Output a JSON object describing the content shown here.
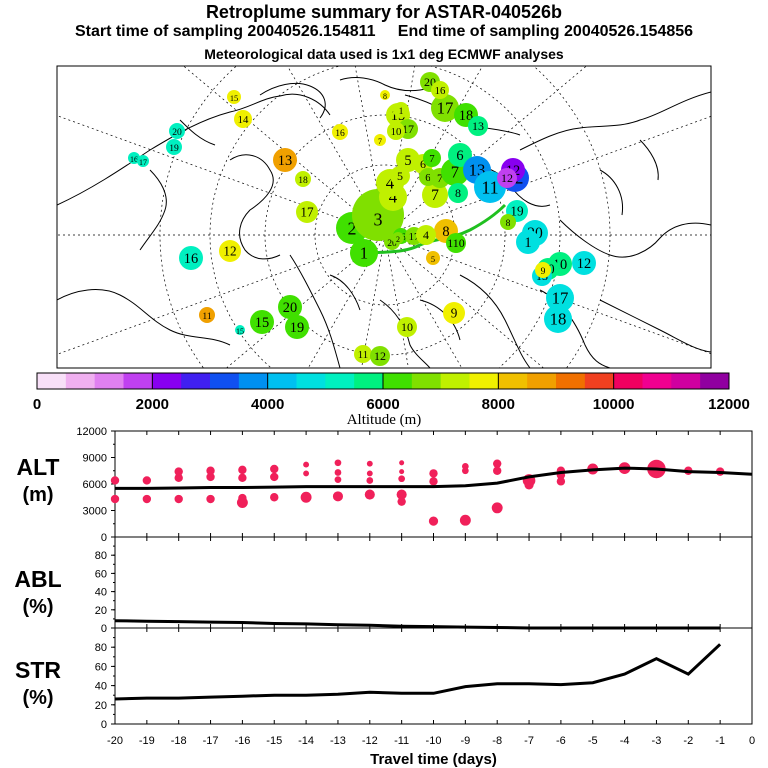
{
  "header": {
    "title": "Retroplume summary for ASTAR-040526b",
    "subtitle": "Start time of sampling 20040526.154811     End time of sampling 20040526.154856",
    "subtitle2": "Meteorological data used is 1x1 deg ECMWF analyses"
  },
  "colorbar": {
    "label": "Altitude (m)",
    "colors": [
      "#f8e0f8",
      "#f0b0f0",
      "#e080f0",
      "#c040f0",
      "#8800f0",
      "#4020f0",
      "#1050f0",
      "#0090f0",
      "#00c0f0",
      "#00e0e0",
      "#00f0c0",
      "#00f080",
      "#40e000",
      "#80e000",
      "#c0f000",
      "#f0f000",
      "#f0c000",
      "#f0a000",
      "#f07000",
      "#f04020",
      "#f00060",
      "#f00090",
      "#d000a0",
      "#9000a0"
    ],
    "ticks": [
      "0",
      "2000",
      "4000",
      "6000",
      "8000",
      "10000",
      "12000"
    ]
  },
  "map": {
    "markers": [
      {
        "label": "1",
        "alt": 6200
      },
      {
        "label": "2",
        "alt": 6400
      },
      {
        "label": "3",
        "alt": 6600
      },
      {
        "label": "4",
        "alt": 7000
      },
      {
        "label": "5",
        "alt": 7400
      },
      {
        "label": "6",
        "alt": 5600
      },
      {
        "label": "7",
        "alt": 5800
      },
      {
        "label": "8",
        "alt": 4800
      },
      {
        "label": "9",
        "alt": 7600
      },
      {
        "label": "10",
        "alt": 6800
      },
      {
        "label": "11",
        "alt": 5000
      },
      {
        "label": "12",
        "alt": 4600
      },
      {
        "label": "13",
        "alt": 8600
      },
      {
        "label": "14",
        "alt": 8400
      },
      {
        "label": "15",
        "alt": 7800
      },
      {
        "label": "16",
        "alt": 4800
      },
      {
        "label": "17",
        "alt": 7700
      },
      {
        "label": "18",
        "alt": 5100
      },
      {
        "label": "19",
        "alt": 5500
      },
      {
        "label": "20",
        "alt": 6900
      }
    ]
  },
  "chart_data": [
    {
      "type": "scatter",
      "panel": "ALT",
      "label_line1": "ALT",
      "label_line2": "(m)",
      "ylim": [
        0,
        12000
      ],
      "yticks": [
        "0",
        "3000",
        "6000",
        "9000",
        "12000"
      ],
      "xlim": [
        -20,
        0
      ],
      "mean_line": {
        "x": [
          -20,
          -19,
          -18,
          -17,
          -16,
          -15,
          -14,
          -13,
          -12,
          -11,
          -10,
          -9,
          -8,
          -7,
          -6,
          -5,
          -4,
          -3,
          -2,
          -1,
          0
        ],
        "y": [
          5500,
          5500,
          5550,
          5600,
          5600,
          5650,
          5700,
          5700,
          5700,
          5700,
          5700,
          5800,
          6100,
          6800,
          7300,
          7600,
          7800,
          7700,
          7400,
          7300,
          7100
        ]
      },
      "points": [
        {
          "x": -20,
          "y": 6400,
          "s": 1
        },
        {
          "x": -20,
          "y": 4300,
          "s": 1
        },
        {
          "x": -19,
          "y": 6400,
          "s": 1
        },
        {
          "x": -19,
          "y": 4300,
          "s": 1
        },
        {
          "x": -18,
          "y": 7400,
          "s": 1
        },
        {
          "x": -18,
          "y": 6700,
          "s": 1
        },
        {
          "x": -18,
          "y": 4300,
          "s": 1
        },
        {
          "x": -17,
          "y": 7500,
          "s": 1
        },
        {
          "x": -17,
          "y": 6800,
          "s": 1
        },
        {
          "x": -17,
          "y": 4300,
          "s": 1
        },
        {
          "x": -16,
          "y": 7600,
          "s": 1
        },
        {
          "x": -16,
          "y": 6700,
          "s": 1
        },
        {
          "x": -16,
          "y": 4400,
          "s": 1
        },
        {
          "x": -16,
          "y": 3900,
          "s": 1.3
        },
        {
          "x": -15,
          "y": 7700,
          "s": 1
        },
        {
          "x": -15,
          "y": 6800,
          "s": 1
        },
        {
          "x": -15,
          "y": 4500,
          "s": 1
        },
        {
          "x": -14,
          "y": 8200,
          "s": 0.7
        },
        {
          "x": -14,
          "y": 7200,
          "s": 0.7
        },
        {
          "x": -14,
          "y": 4500,
          "s": 1.3
        },
        {
          "x": -13,
          "y": 8400,
          "s": 0.8
        },
        {
          "x": -13,
          "y": 7300,
          "s": 0.8
        },
        {
          "x": -13,
          "y": 6500,
          "s": 0.8
        },
        {
          "x": -13,
          "y": 4600,
          "s": 1.2
        },
        {
          "x": -12,
          "y": 8300,
          "s": 0.7
        },
        {
          "x": -12,
          "y": 7200,
          "s": 0.7
        },
        {
          "x": -12,
          "y": 6400,
          "s": 0.8
        },
        {
          "x": -12,
          "y": 4800,
          "s": 1.2
        },
        {
          "x": -11,
          "y": 8400,
          "s": 0.6
        },
        {
          "x": -11,
          "y": 7400,
          "s": 0.6
        },
        {
          "x": -11,
          "y": 6600,
          "s": 0.8
        },
        {
          "x": -11,
          "y": 4800,
          "s": 1.2
        },
        {
          "x": -11,
          "y": 4000,
          "s": 1
        },
        {
          "x": -10,
          "y": 7200,
          "s": 1
        },
        {
          "x": -10,
          "y": 6300,
          "s": 1
        },
        {
          "x": -10,
          "y": 1800,
          "s": 1.1
        },
        {
          "x": -9,
          "y": 8000,
          "s": 0.8
        },
        {
          "x": -9,
          "y": 7500,
          "s": 0.8
        },
        {
          "x": -9,
          "y": 1900,
          "s": 1.3
        },
        {
          "x": -8,
          "y": 8300,
          "s": 1
        },
        {
          "x": -8,
          "y": 7500,
          "s": 1
        },
        {
          "x": -8,
          "y": 3300,
          "s": 1.3
        },
        {
          "x": -7,
          "y": 6400,
          "s": 1.5
        },
        {
          "x": -7,
          "y": 5900,
          "s": 1.1
        },
        {
          "x": -6,
          "y": 7500,
          "s": 1
        },
        {
          "x": -6,
          "y": 7000,
          "s": 1
        },
        {
          "x": -6,
          "y": 6300,
          "s": 1
        },
        {
          "x": -5,
          "y": 7700,
          "s": 1.3
        },
        {
          "x": -4,
          "y": 7800,
          "s": 1.4
        },
        {
          "x": -3,
          "y": 7700,
          "s": 2.2
        },
        {
          "x": -2,
          "y": 7500,
          "s": 1
        },
        {
          "x": -1,
          "y": 7400,
          "s": 1
        }
      ]
    },
    {
      "type": "line",
      "panel": "ABL",
      "label_line1": "ABL",
      "label_line2": "(%)",
      "ylim": [
        0,
        100
      ],
      "yticks": [
        "0",
        "20",
        "40",
        "60",
        "80"
      ],
      "xlim": [
        -20,
        0
      ],
      "x": [
        -20,
        -19,
        -18,
        -17,
        -16,
        -15,
        -14,
        -13,
        -12,
        -11,
        -10,
        -9,
        -8,
        -7,
        -6,
        -5,
        -4,
        -3,
        -2,
        -1
      ],
      "y": [
        8,
        7.5,
        7,
        6.5,
        6,
        5,
        4.5,
        3.5,
        3,
        2,
        1.5,
        1,
        0.5,
        0,
        0,
        0,
        0,
        0,
        0,
        0
      ]
    },
    {
      "type": "line",
      "panel": "STR",
      "label_line1": "STR",
      "label_line2": "(%)",
      "ylim": [
        0,
        100
      ],
      "yticks": [
        "0",
        "20",
        "40",
        "60",
        "80"
      ],
      "xlim": [
        -20,
        0
      ],
      "x": [
        -20,
        -19,
        -18,
        -17,
        -16,
        -15,
        -14,
        -13,
        -12,
        -11,
        -10,
        -9,
        -8,
        -7,
        -6,
        -5,
        -4,
        -3,
        -2,
        -1
      ],
      "y": [
        26,
        27,
        27,
        28,
        29,
        30,
        30,
        31,
        33,
        32,
        32,
        39,
        42,
        42,
        41,
        43,
        52,
        68,
        52,
        83
      ],
      "xticks": [
        "-20",
        "-19",
        "-18",
        "-17",
        "-16",
        "-15",
        "-14",
        "-13",
        "-12",
        "-11",
        "-10",
        "-9",
        "-8",
        "-7",
        "-6",
        "-5",
        "-4",
        "-3",
        "-2",
        "-1",
        "0"
      ],
      "xlabel": "Travel time (days)"
    }
  ]
}
